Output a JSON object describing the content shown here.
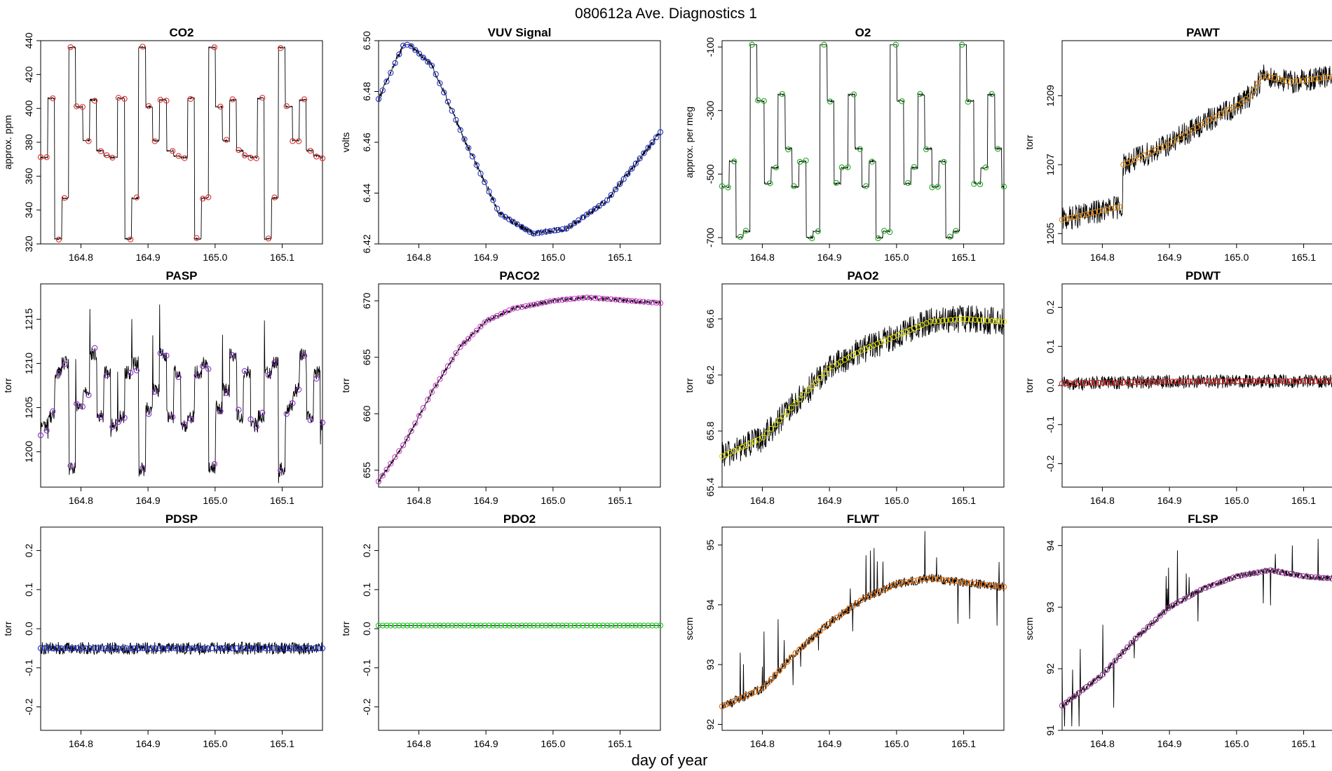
{
  "figure": {
    "title": "080612a   Ave. Diagnostics 1",
    "xlabel": "day of year"
  },
  "chart_data": [
    {
      "type": "line",
      "title": "CO2",
      "ylabel": "approx. ppm",
      "xlim": [
        164.74,
        165.16
      ],
      "ylim": [
        320,
        440
      ],
      "xticks": [
        164.8,
        164.9,
        165.0,
        165.1
      ],
      "yticks": [
        320,
        340,
        360,
        380,
        400,
        420,
        440
      ],
      "pattern": "step",
      "baseline_levels": [
        371,
        406,
        323,
        347,
        436,
        401,
        381,
        405,
        375,
        372
      ],
      "period_days": 0.1042,
      "noise": 0.5,
      "trend": [
        0,
        0
      ],
      "point_color": "#e03030",
      "series_name": "CO2"
    },
    {
      "type": "line",
      "title": "VUV Signal",
      "ylabel": "volts",
      "xlim": [
        164.74,
        165.16
      ],
      "ylim": [
        6.42,
        6.5
      ],
      "xticks": [
        164.8,
        164.9,
        165.0,
        165.1
      ],
      "yticks": [
        6.42,
        6.44,
        6.46,
        6.48,
        6.5
      ],
      "pattern": "vuv",
      "keypoints": [
        [
          164.74,
          6.477
        ],
        [
          164.78,
          6.5
        ],
        [
          164.82,
          6.49
        ],
        [
          164.87,
          6.46
        ],
        [
          164.92,
          6.432
        ],
        [
          164.97,
          6.424
        ],
        [
          165.02,
          6.426
        ],
        [
          165.08,
          6.437
        ],
        [
          165.16,
          6.464
        ]
      ],
      "noise": 0.0012,
      "point_color": "#2233cc",
      "series_name": "VUV"
    },
    {
      "type": "line",
      "title": "O2",
      "ylabel": "approx. per meg",
      "xlim": [
        164.74,
        165.16
      ],
      "ylim": [
        -720,
        -80
      ],
      "xticks": [
        164.8,
        164.9,
        165.0,
        165.1
      ],
      "yticks": [
        -700,
        -500,
        -300,
        -100
      ],
      "pattern": "step",
      "baseline_levels": [
        -540,
        -460,
        -700,
        -680,
        -90,
        -270,
        -530,
        -480,
        -250,
        -420
      ],
      "period_days": 0.1042,
      "noise": 3,
      "trend": [
        0,
        0
      ],
      "point_color": "#22aa22",
      "series_name": "O2"
    },
    {
      "type": "line",
      "title": "PAWT",
      "ylabel": "torr",
      "xlim": [
        164.74,
        165.16
      ],
      "ylim": [
        1204.7,
        1210.6
      ],
      "xticks": [
        164.8,
        164.9,
        165.0,
        165.1
      ],
      "yticks": [
        1205,
        1207,
        1209
      ],
      "pattern": "pawt",
      "keypoints": [
        [
          164.74,
          1205.4
        ],
        [
          164.83,
          1205.8
        ],
        [
          164.831,
          1207.0
        ],
        [
          164.9,
          1207.6
        ],
        [
          164.95,
          1208.2
        ],
        [
          165.0,
          1208.7
        ],
        [
          165.02,
          1209.0
        ],
        [
          165.04,
          1209.6
        ],
        [
          165.08,
          1209.4
        ],
        [
          165.16,
          1209.6
        ]
      ],
      "noise": 0.35,
      "point_color": "#e08a10",
      "series_name": "PAWT"
    },
    {
      "type": "line",
      "title": "PASP",
      "ylabel": "torr",
      "xlim": [
        164.74,
        165.16
      ],
      "ylim": [
        1196,
        1219
      ],
      "xticks": [
        164.8,
        164.9,
        165.0,
        165.1
      ],
      "yticks": [
        1200,
        1205,
        1210,
        1215
      ],
      "pattern": "step",
      "baseline_levels": [
        1203,
        1204,
        1209,
        1210,
        1198,
        1205,
        1207,
        1211,
        1204,
        1209
      ],
      "period_days": 0.1042,
      "noise": 0.8,
      "spikes": true,
      "trend": [
        0,
        0
      ],
      "point_color": "#8833cc",
      "series_name": "PASP"
    },
    {
      "type": "line",
      "title": "PACO2",
      "ylabel": "torr",
      "xlim": [
        164.74,
        165.16
      ],
      "ylim": [
        653.5,
        671.5
      ],
      "xticks": [
        164.8,
        164.9,
        165.0,
        165.1
      ],
      "yticks": [
        655,
        660,
        665,
        670
      ],
      "pattern": "curve",
      "keypoints": [
        [
          164.74,
          654.0
        ],
        [
          164.78,
          657.5
        ],
        [
          164.82,
          662.0
        ],
        [
          164.86,
          665.8
        ],
        [
          164.9,
          668.2
        ],
        [
          164.94,
          669.3
        ],
        [
          165.0,
          670.0
        ],
        [
          165.05,
          670.3
        ],
        [
          165.16,
          669.8
        ]
      ],
      "noise": 0.2,
      "point_color": "#cc44cc",
      "series_name": "PACO2"
    },
    {
      "type": "line",
      "title": "PAO2",
      "ylabel": "torr",
      "xlim": [
        164.74,
        165.16
      ],
      "ylim": [
        65.4,
        66.85
      ],
      "xticks": [
        164.8,
        164.9,
        165.0,
        165.1
      ],
      "yticks": [
        65.4,
        65.8,
        66.2,
        66.6
      ],
      "pattern": "curve",
      "keypoints": [
        [
          164.74,
          65.62
        ],
        [
          164.8,
          65.75
        ],
        [
          164.85,
          66.0
        ],
        [
          164.9,
          66.25
        ],
        [
          164.95,
          66.38
        ],
        [
          165.0,
          66.48
        ],
        [
          165.05,
          66.58
        ],
        [
          165.1,
          66.6
        ],
        [
          165.16,
          66.58
        ]
      ],
      "noise": 0.1,
      "point_color": "#dddd00",
      "series_name": "PAO2"
    },
    {
      "type": "line",
      "title": "PDWT",
      "ylabel": "torr",
      "xlim": [
        164.74,
        165.16
      ],
      "ylim": [
        -0.26,
        0.26
      ],
      "xticks": [
        164.8,
        164.9,
        165.0,
        165.1
      ],
      "yticks": [
        -0.2,
        -0.1,
        0.0,
        0.1,
        0.2
      ],
      "pattern": "curve",
      "keypoints": [
        [
          164.74,
          0.005
        ],
        [
          164.9,
          0.01
        ],
        [
          165.16,
          0.012
        ]
      ],
      "noise": 0.018,
      "point_color": "#cc2222",
      "series_name": "PDWT"
    },
    {
      "type": "line",
      "title": "PDSP",
      "ylabel": "torr",
      "xlim": [
        164.74,
        165.16
      ],
      "ylim": [
        -0.26,
        0.26
      ],
      "xticks": [
        164.8,
        164.9,
        165.0,
        165.1
      ],
      "yticks": [
        -0.2,
        -0.1,
        0.0,
        0.1,
        0.2
      ],
      "pattern": "curve",
      "keypoints": [
        [
          164.74,
          -0.05
        ],
        [
          165.16,
          -0.05
        ]
      ],
      "noise": 0.016,
      "point_color": "#2233cc",
      "series_name": "PDSP"
    },
    {
      "type": "line",
      "title": "PDO2",
      "ylabel": "torr",
      "xlim": [
        164.74,
        165.16
      ],
      "ylim": [
        -0.26,
        0.26
      ],
      "xticks": [
        164.8,
        164.9,
        165.0,
        165.1
      ],
      "yticks": [
        -0.2,
        -0.1,
        0.0,
        0.1,
        0.2
      ],
      "pattern": "curve",
      "keypoints": [
        [
          164.74,
          0.008
        ],
        [
          165.16,
          0.008
        ]
      ],
      "noise": 0.001,
      "point_color": "#22cc22",
      "series_name": "PDO2"
    },
    {
      "type": "line",
      "title": "FLWT",
      "ylabel": "sccm",
      "xlim": [
        164.74,
        165.16
      ],
      "ylim": [
        91.9,
        95.3
      ],
      "xticks": [
        164.8,
        164.9,
        165.0,
        165.1
      ],
      "yticks": [
        92.0,
        93.0,
        94.0,
        95.0
      ],
      "pattern": "curve",
      "keypoints": [
        [
          164.74,
          92.3
        ],
        [
          164.8,
          92.6
        ],
        [
          164.85,
          93.2
        ],
        [
          164.9,
          93.7
        ],
        [
          164.95,
          94.1
        ],
        [
          165.0,
          94.35
        ],
        [
          165.05,
          94.45
        ],
        [
          165.08,
          94.4
        ],
        [
          165.16,
          94.3
        ]
      ],
      "noise": 0.08,
      "spikes_up": true,
      "point_color": "#dd6600",
      "series_name": "FLWT"
    },
    {
      "type": "line",
      "title": "FLSP",
      "ylabel": "sccm",
      "xlim": [
        164.74,
        165.16
      ],
      "ylim": [
        91.0,
        94.3
      ],
      "xticks": [
        164.8,
        164.9,
        165.0,
        165.1
      ],
      "yticks": [
        91.0,
        92.0,
        93.0,
        94.0
      ],
      "pattern": "curve",
      "keypoints": [
        [
          164.74,
          91.4
        ],
        [
          164.8,
          91.9
        ],
        [
          164.85,
          92.5
        ],
        [
          164.9,
          93.0
        ],
        [
          164.95,
          93.3
        ],
        [
          165.0,
          93.5
        ],
        [
          165.05,
          93.6
        ],
        [
          165.1,
          93.5
        ],
        [
          165.16,
          93.45
        ]
      ],
      "noise": 0.05,
      "spikes_up": true,
      "point_color": "#993399",
      "series_name": "FLSP"
    }
  ]
}
